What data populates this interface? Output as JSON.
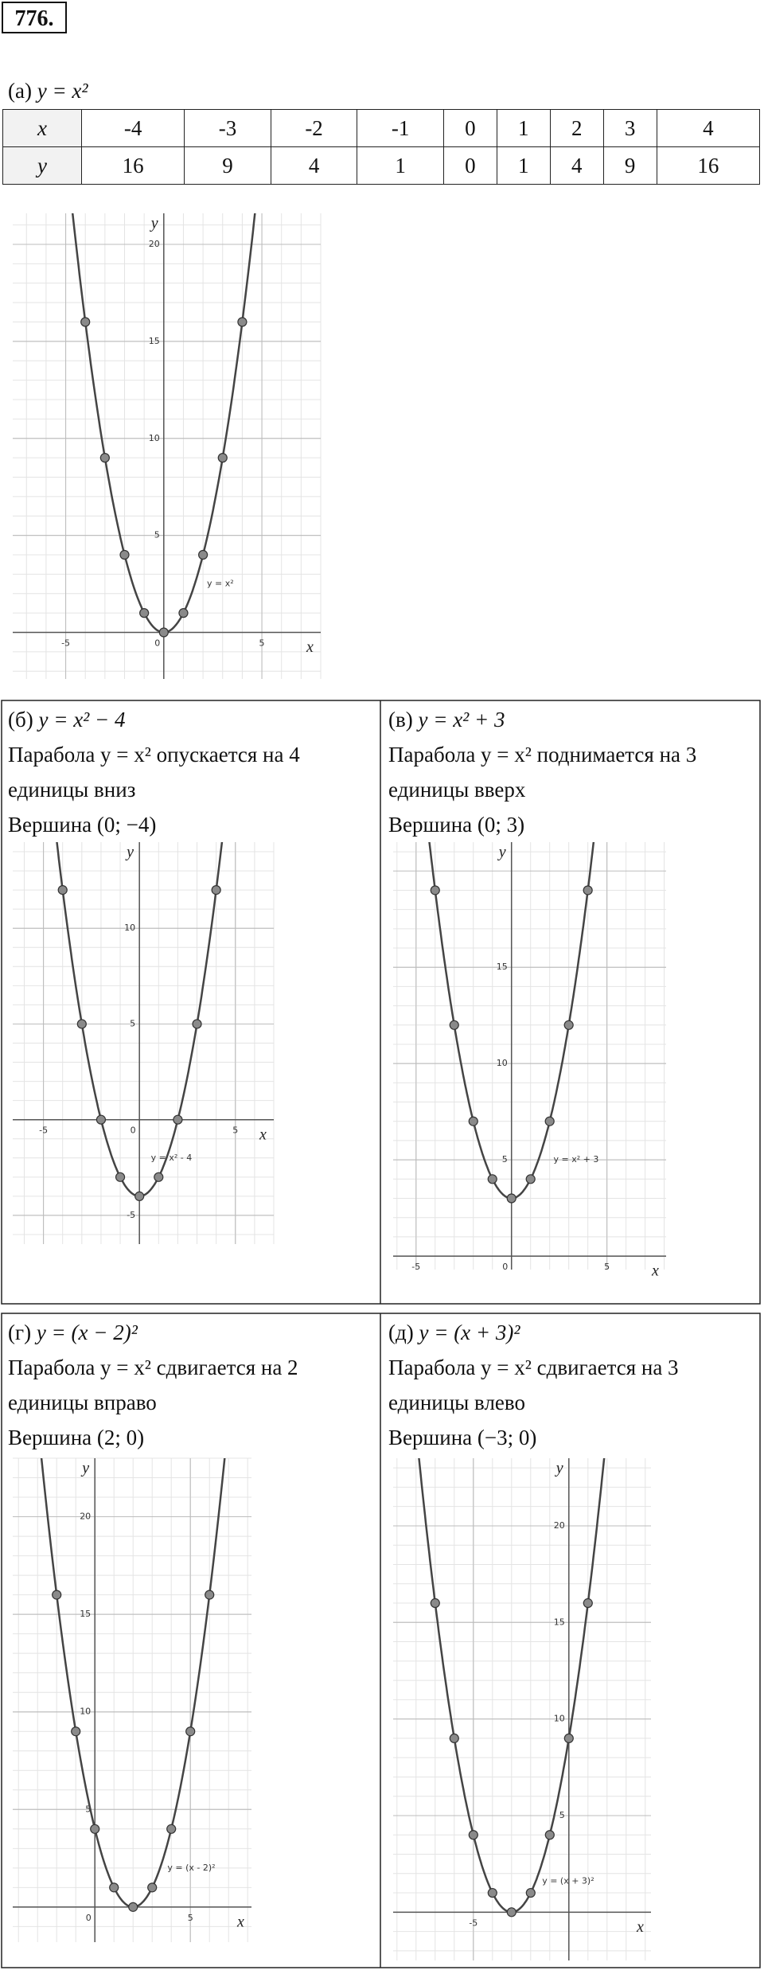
{
  "problem_number": "776.",
  "parts": [
    {
      "label": "(а)",
      "formula": "y = x²",
      "table": {
        "x_header": "x",
        "y_header": "y",
        "x": [
          -4,
          -3,
          -2,
          -1,
          0,
          1,
          2,
          3,
          4
        ],
        "y": [
          16,
          9,
          4,
          1,
          0,
          1,
          4,
          9,
          16
        ]
      },
      "graph": {
        "xlim": [
          -7.7,
          8
        ],
        "ylim": [
          -2.4,
          21.6
        ],
        "xticks": [
          -5,
          0,
          5
        ],
        "yticks": [
          5,
          10,
          15,
          20
        ],
        "x_label": "x",
        "y_label": "y",
        "curve_label": "y = x²",
        "points": {
          "x": [
            -4,
            -3,
            -2,
            -1,
            0,
            1,
            2,
            3,
            4
          ],
          "y": [
            16,
            9,
            4,
            1,
            0,
            1,
            4,
            9,
            16
          ]
        }
      }
    },
    {
      "label": "(б)",
      "formula": "y = x² − 4",
      "description": "Парабола y = x² опускается на 4 единицы вниз",
      "vertex": "Вершина (0; −4)",
      "graph": {
        "xlim": [
          -6.6,
          7
        ],
        "ylim": [
          -6.5,
          14.5
        ],
        "xticks": [
          -5,
          0,
          5
        ],
        "yticks": [
          -5,
          5,
          10
        ],
        "x_label": "x",
        "y_label": "y",
        "curve_label": "y = x² - 4",
        "points": {
          "x": [
            -4,
            -3,
            -2,
            -1,
            0,
            1,
            2,
            3,
            4
          ],
          "y": [
            12,
            5,
            0,
            -3,
            -4,
            -3,
            0,
            5,
            12
          ]
        }
      }
    },
    {
      "label": "(в)",
      "formula": "y = x² + 3",
      "description": "Парабола y = x² поднимается на 3 единицы вверх",
      "vertex": "Вершина (0; 3)",
      "graph": {
        "xlim": [
          -6.2,
          8.1
        ],
        "ylim": [
          -0.7,
          21.5
        ],
        "xticks": [
          -5,
          0,
          5
        ],
        "yticks": [
          5,
          10,
          15
        ],
        "x_label": "x",
        "y_label": "y",
        "curve_label": "y = x² + 3",
        "points": {
          "x": [
            -4,
            -3,
            -2,
            -1,
            0,
            1,
            2,
            3,
            4
          ],
          "y": [
            19,
            12,
            7,
            4,
            3,
            4,
            7,
            12,
            19
          ]
        }
      }
    },
    {
      "label": "(г)",
      "formula": "y = (x − 2)²",
      "description": "Парабола y = x² сдвигается на 2 единицы вправо",
      "vertex": "Вершина (2; 0)",
      "graph": {
        "xlim": [
          -4.3,
          8.2
        ],
        "ylim": [
          -1.8,
          23
        ],
        "xticks": [
          0,
          5
        ],
        "yticks": [
          5,
          10,
          15,
          20
        ],
        "x_label": "x",
        "y_label": "y",
        "curve_label": "y = (x - 2)²",
        "points": {
          "x": [
            -2,
            -1,
            0,
            1,
            2,
            3,
            4,
            5,
            6
          ],
          "y": [
            16,
            9,
            4,
            1,
            0,
            1,
            4,
            9,
            16
          ]
        }
      }
    },
    {
      "label": "(д)",
      "formula": "y = (x + 3)²",
      "description": "Парабола y = x² сдвигается на 3 единицы влево",
      "vertex": "Вершина (−3; 0)",
      "graph": {
        "xlim": [
          -9.2,
          4.3
        ],
        "ylim": [
          -2.5,
          23.5
        ],
        "xticks": [
          -5
        ],
        "yticks": [
          5,
          10,
          15,
          20
        ],
        "x_label": "x",
        "y_label": "y",
        "curve_label": "y = (x + 3)²",
        "points": {
          "x": [
            -7,
            -6,
            -5,
            -4,
            -3,
            -2,
            -1,
            0,
            1
          ],
          "y": [
            16,
            9,
            4,
            1,
            0,
            1,
            4,
            9,
            16
          ]
        }
      }
    }
  ]
}
